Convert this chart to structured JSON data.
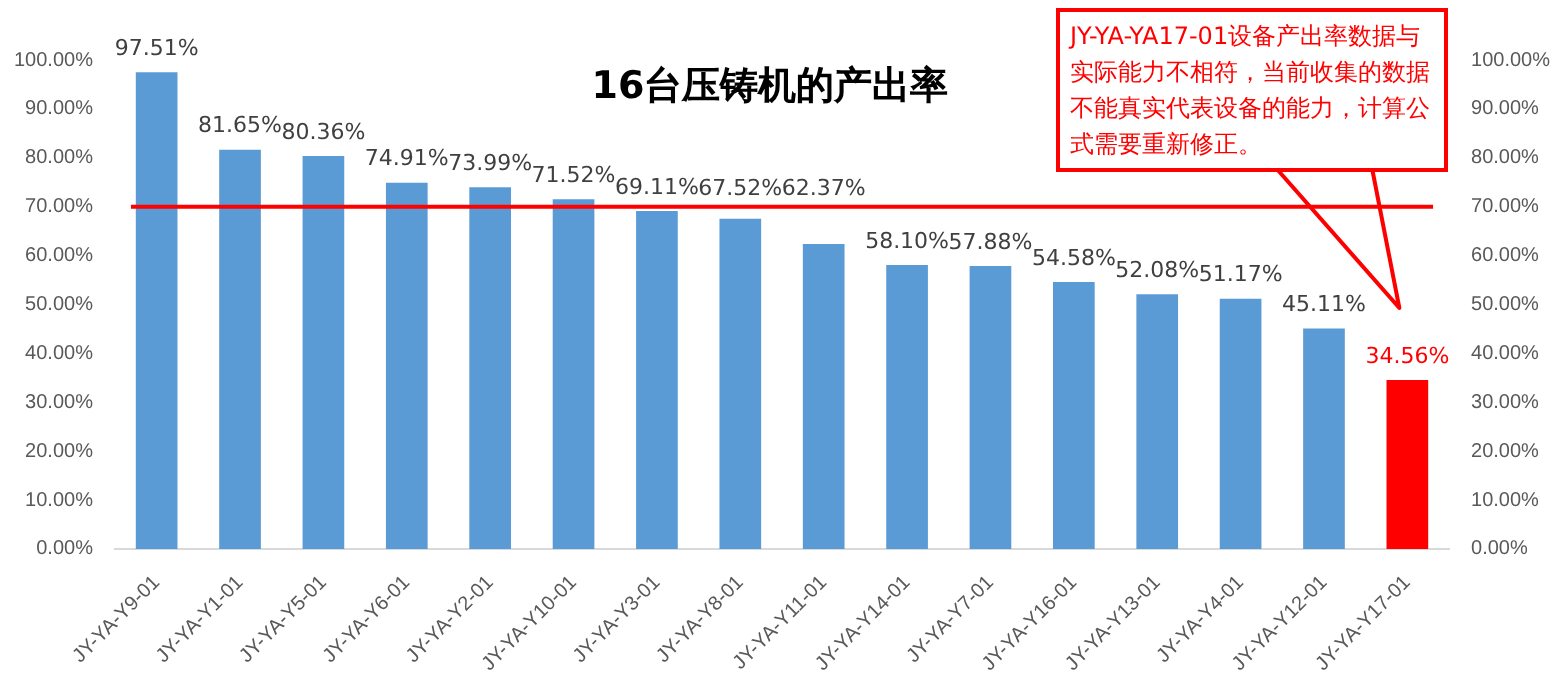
{
  "chart_data": {
    "type": "bar",
    "title": "16台压铸机的产出率",
    "categories": [
      "JY-YA-Y9-01",
      "JY-YA-Y1-01",
      "JY-YA-Y5-01",
      "JY-YA-Y6-01",
      "JY-YA-Y2-01",
      "JY-YA-Y10-01",
      "JY-YA-Y3-01",
      "JY-YA-Y8-01",
      "JY-YA-Y11-01",
      "JY-YA-Y14-01",
      "JY-YA-Y7-01",
      "JY-YA-Y16-01",
      "JY-YA-Y13-01",
      "JY-YA-Y4-01",
      "JY-YA-Y12-01",
      "JY-YA-Y17-01"
    ],
    "values": [
      97.51,
      81.65,
      80.36,
      74.91,
      73.99,
      71.52,
      69.11,
      67.52,
      62.37,
      58.1,
      57.88,
      54.58,
      52.08,
      51.17,
      45.11,
      34.56
    ],
    "colors": [
      "#5b9bd5",
      "#5b9bd5",
      "#5b9bd5",
      "#5b9bd5",
      "#5b9bd5",
      "#5b9bd5",
      "#5b9bd5",
      "#5b9bd5",
      "#5b9bd5",
      "#5b9bd5",
      "#5b9bd5",
      "#5b9bd5",
      "#5b9bd5",
      "#5b9bd5",
      "#5b9bd5",
      "#ff0000"
    ],
    "value_labels": [
      "97.51%",
      "81.65%",
      "80.36%",
      "74.91%",
      "73.99%",
      "71.52%",
      "69.11%",
      "67.52%",
      "62.37%",
      "58.10%",
      "57.88%",
      "54.58%",
      "52.08%",
      "51.17%",
      "45.11%",
      "34.56%"
    ],
    "ylim": [
      0,
      100
    ],
    "yticks": [
      {
        "value": 0,
        "label": "0.00%"
      },
      {
        "value": 10,
        "label": "10.00%"
      },
      {
        "value": 20,
        "label": "20.00%"
      },
      {
        "value": 30,
        "label": "30.00%"
      },
      {
        "value": 40,
        "label": "40.00%"
      },
      {
        "value": 50,
        "label": "50.00%"
      },
      {
        "value": 60,
        "label": "60.00%"
      },
      {
        "value": 70,
        "label": "70.00%"
      },
      {
        "value": 80,
        "label": "80.00%"
      },
      {
        "value": 90,
        "label": "90.00%"
      },
      {
        "value": 100,
        "label": "100.00%"
      }
    ],
    "y2lim": [
      0,
      100
    ],
    "y2ticks": [
      {
        "value": 0,
        "label": "0.00%"
      },
      {
        "value": 10,
        "label": "10.00%"
      },
      {
        "value": 20,
        "label": "20.00%"
      },
      {
        "value": 30,
        "label": "30.00%"
      },
      {
        "value": 40,
        "label": "40.00%"
      },
      {
        "value": 50,
        "label": "50.00%"
      },
      {
        "value": 60,
        "label": "60.00%"
      },
      {
        "value": 70,
        "label": "70.00%"
      },
      {
        "value": 80,
        "label": "80.00%"
      },
      {
        "value": 90,
        "label": "90.00%"
      },
      {
        "value": 100,
        "label": "100.00%"
      }
    ],
    "ref_lines": [
      {
        "axis": "y",
        "value": 70,
        "color": "#ff0000"
      }
    ],
    "annotations": [
      "JY-YA-YA17-01设备产出率数据与实际能力不相符，当前收集的数据不能真实代表设备的能力，计算公式需要重新修正。"
    ],
    "grid": false,
    "legend": false
  }
}
